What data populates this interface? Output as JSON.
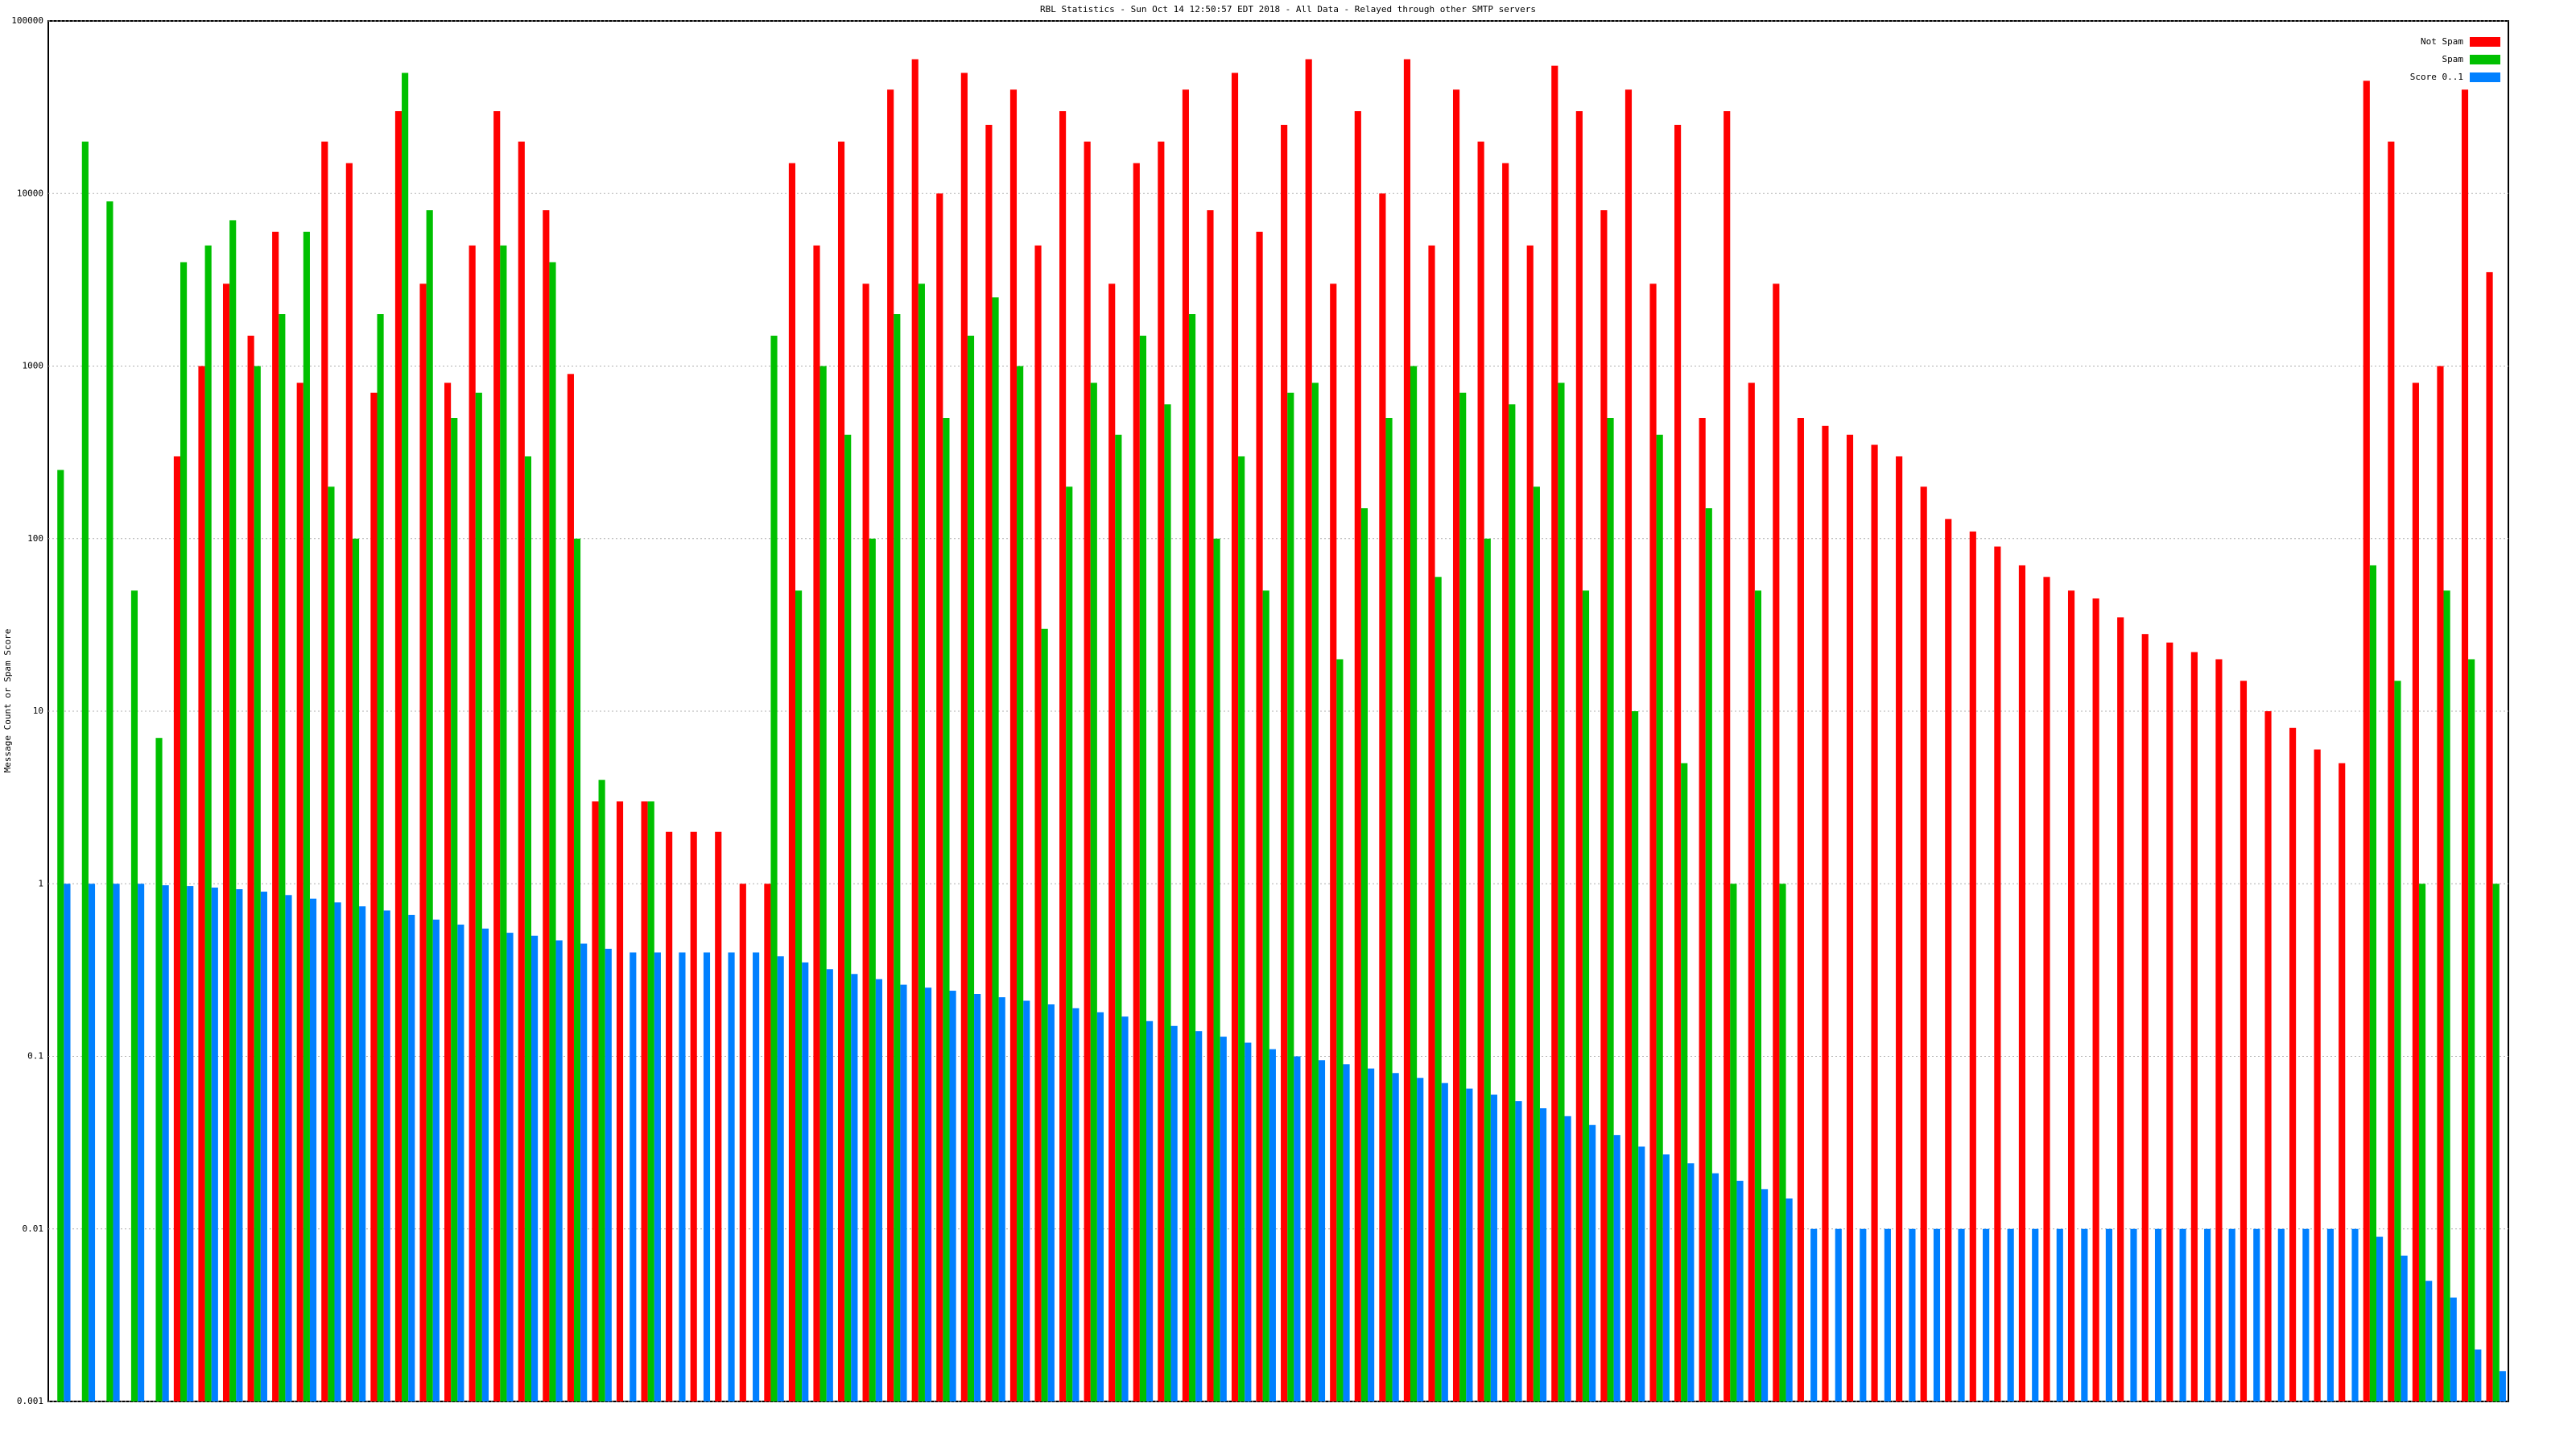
{
  "chart_data": {
    "type": "bar",
    "title": "RBL Statistics - Sun Oct 14 12:50:57 EDT 2018 - All Data - Relayed through other SMTP servers",
    "y_label": "Message Count or Spam Score",
    "log_scale": true,
    "grid": true,
    "legend_position": "upper right",
    "ylim": [
      0.001,
      100000
    ],
    "yticks": [
      0.001,
      0.01,
      0.1,
      1,
      10,
      100,
      1000,
      10000,
      100000
    ],
    "categories": [
      null,
      null,
      null,
      null,
      null,
      null,
      null,
      null,
      null,
      null,
      null,
      null,
      null,
      null,
      null,
      null,
      null,
      null,
      null,
      null,
      null,
      null,
      null,
      null,
      null,
      null,
      null,
      null,
      null,
      null,
      null,
      null,
      null,
      null,
      null,
      null,
      null,
      null,
      null,
      null,
      null,
      null,
      null,
      null,
      null,
      null,
      null,
      null,
      null,
      null,
      null,
      null,
      null,
      null,
      null,
      null,
      null,
      null,
      null,
      null,
      null,
      null,
      null,
      null,
      null,
      null,
      null,
      null,
      null,
      null,
      null,
      null,
      null,
      null,
      null,
      null,
      null,
      null,
      null,
      null,
      null,
      null,
      null,
      null,
      null,
      null,
      null,
      null,
      null,
      null,
      null,
      null,
      null,
      null,
      null,
      null,
      null,
      null,
      null,
      null
    ],
    "series": [
      {
        "name": "Not Spam",
        "color": "#ff0000",
        "values": [
          null,
          null,
          null,
          null,
          null,
          300,
          1000,
          3000,
          1500,
          6000,
          800,
          20000,
          15000,
          700,
          30000,
          3000,
          800,
          5000,
          30000,
          20000,
          8000,
          900,
          3,
          3,
          3,
          2,
          2,
          2,
          1,
          1,
          15000,
          5000,
          20000,
          3000,
          40000,
          60000,
          10000,
          50000,
          25000,
          40000,
          5000,
          30000,
          20000,
          3000,
          15000,
          20000,
          40000,
          8000,
          50000,
          6000,
          25000,
          60000,
          3000,
          30000,
          10000,
          60000,
          5000,
          40000,
          20000,
          15000,
          5000,
          55000,
          30000,
          8000,
          40000,
          3000,
          25000,
          500,
          30000,
          800,
          3000,
          500,
          450,
          400,
          350,
          300,
          200,
          130,
          110,
          90,
          70,
          60,
          50,
          45,
          35,
          28,
          25,
          22,
          20,
          15,
          10,
          8,
          6,
          5,
          45000,
          20000,
          800,
          1000,
          40000,
          3500
        ]
      },
      {
        "name": "Spam",
        "color": "#00c000",
        "values": [
          250,
          20000,
          9000,
          50,
          7,
          4000,
          5000,
          7000,
          1000,
          2000,
          6000,
          200,
          100,
          2000,
          50000,
          8000,
          500,
          700,
          5000,
          300,
          4000,
          100,
          4,
          null,
          3,
          null,
          null,
          null,
          null,
          1500,
          50,
          1000,
          400,
          100,
          2000,
          3000,
          500,
          1500,
          2500,
          1000,
          30,
          200,
          800,
          400,
          1500,
          600,
          2000,
          100,
          300,
          50,
          700,
          800,
          20,
          150,
          500,
          1000,
          60,
          700,
          100,
          600,
          200,
          800,
          50,
          500,
          10,
          400,
          5,
          150,
          1,
          50,
          1,
          null,
          null,
          null,
          null,
          null,
          null,
          null,
          null,
          null,
          null,
          null,
          null,
          null,
          null,
          null,
          null,
          null,
          null,
          null,
          null,
          null,
          null,
          null,
          70,
          15,
          1,
          50,
          20,
          1
        ]
      },
      {
        "name": "Score 0..1",
        "color": "#0080ff",
        "values": [
          1,
          1,
          1,
          1,
          0.98,
          0.97,
          0.95,
          0.93,
          0.9,
          0.86,
          0.82,
          0.78,
          0.74,
          0.7,
          0.66,
          0.62,
          0.58,
          0.55,
          0.52,
          0.5,
          0.47,
          0.45,
          0.42,
          0.4,
          0.4,
          0.4,
          0.4,
          0.4,
          0.4,
          0.38,
          0.35,
          0.32,
          0.3,
          0.28,
          0.26,
          0.25,
          0.24,
          0.23,
          0.22,
          0.21,
          0.2,
          0.19,
          0.18,
          0.17,
          0.16,
          0.15,
          0.14,
          0.13,
          0.12,
          0.11,
          0.1,
          0.095,
          0.09,
          0.085,
          0.08,
          0.075,
          0.07,
          0.065,
          0.06,
          0.055,
          0.05,
          0.045,
          0.04,
          0.035,
          0.03,
          0.027,
          0.024,
          0.021,
          0.019,
          0.017,
          0.015,
          0.01,
          0.01,
          0.01,
          0.01,
          0.01,
          0.01,
          0.01,
          0.01,
          0.01,
          0.01,
          0.01,
          0.01,
          0.01,
          0.01,
          0.01,
          0.01,
          0.01,
          0.01,
          0.01,
          0.01,
          0.01,
          0.01,
          0.01,
          0.009,
          0.007,
          0.005,
          0.004,
          0.002,
          0.0015
        ]
      }
    ]
  }
}
